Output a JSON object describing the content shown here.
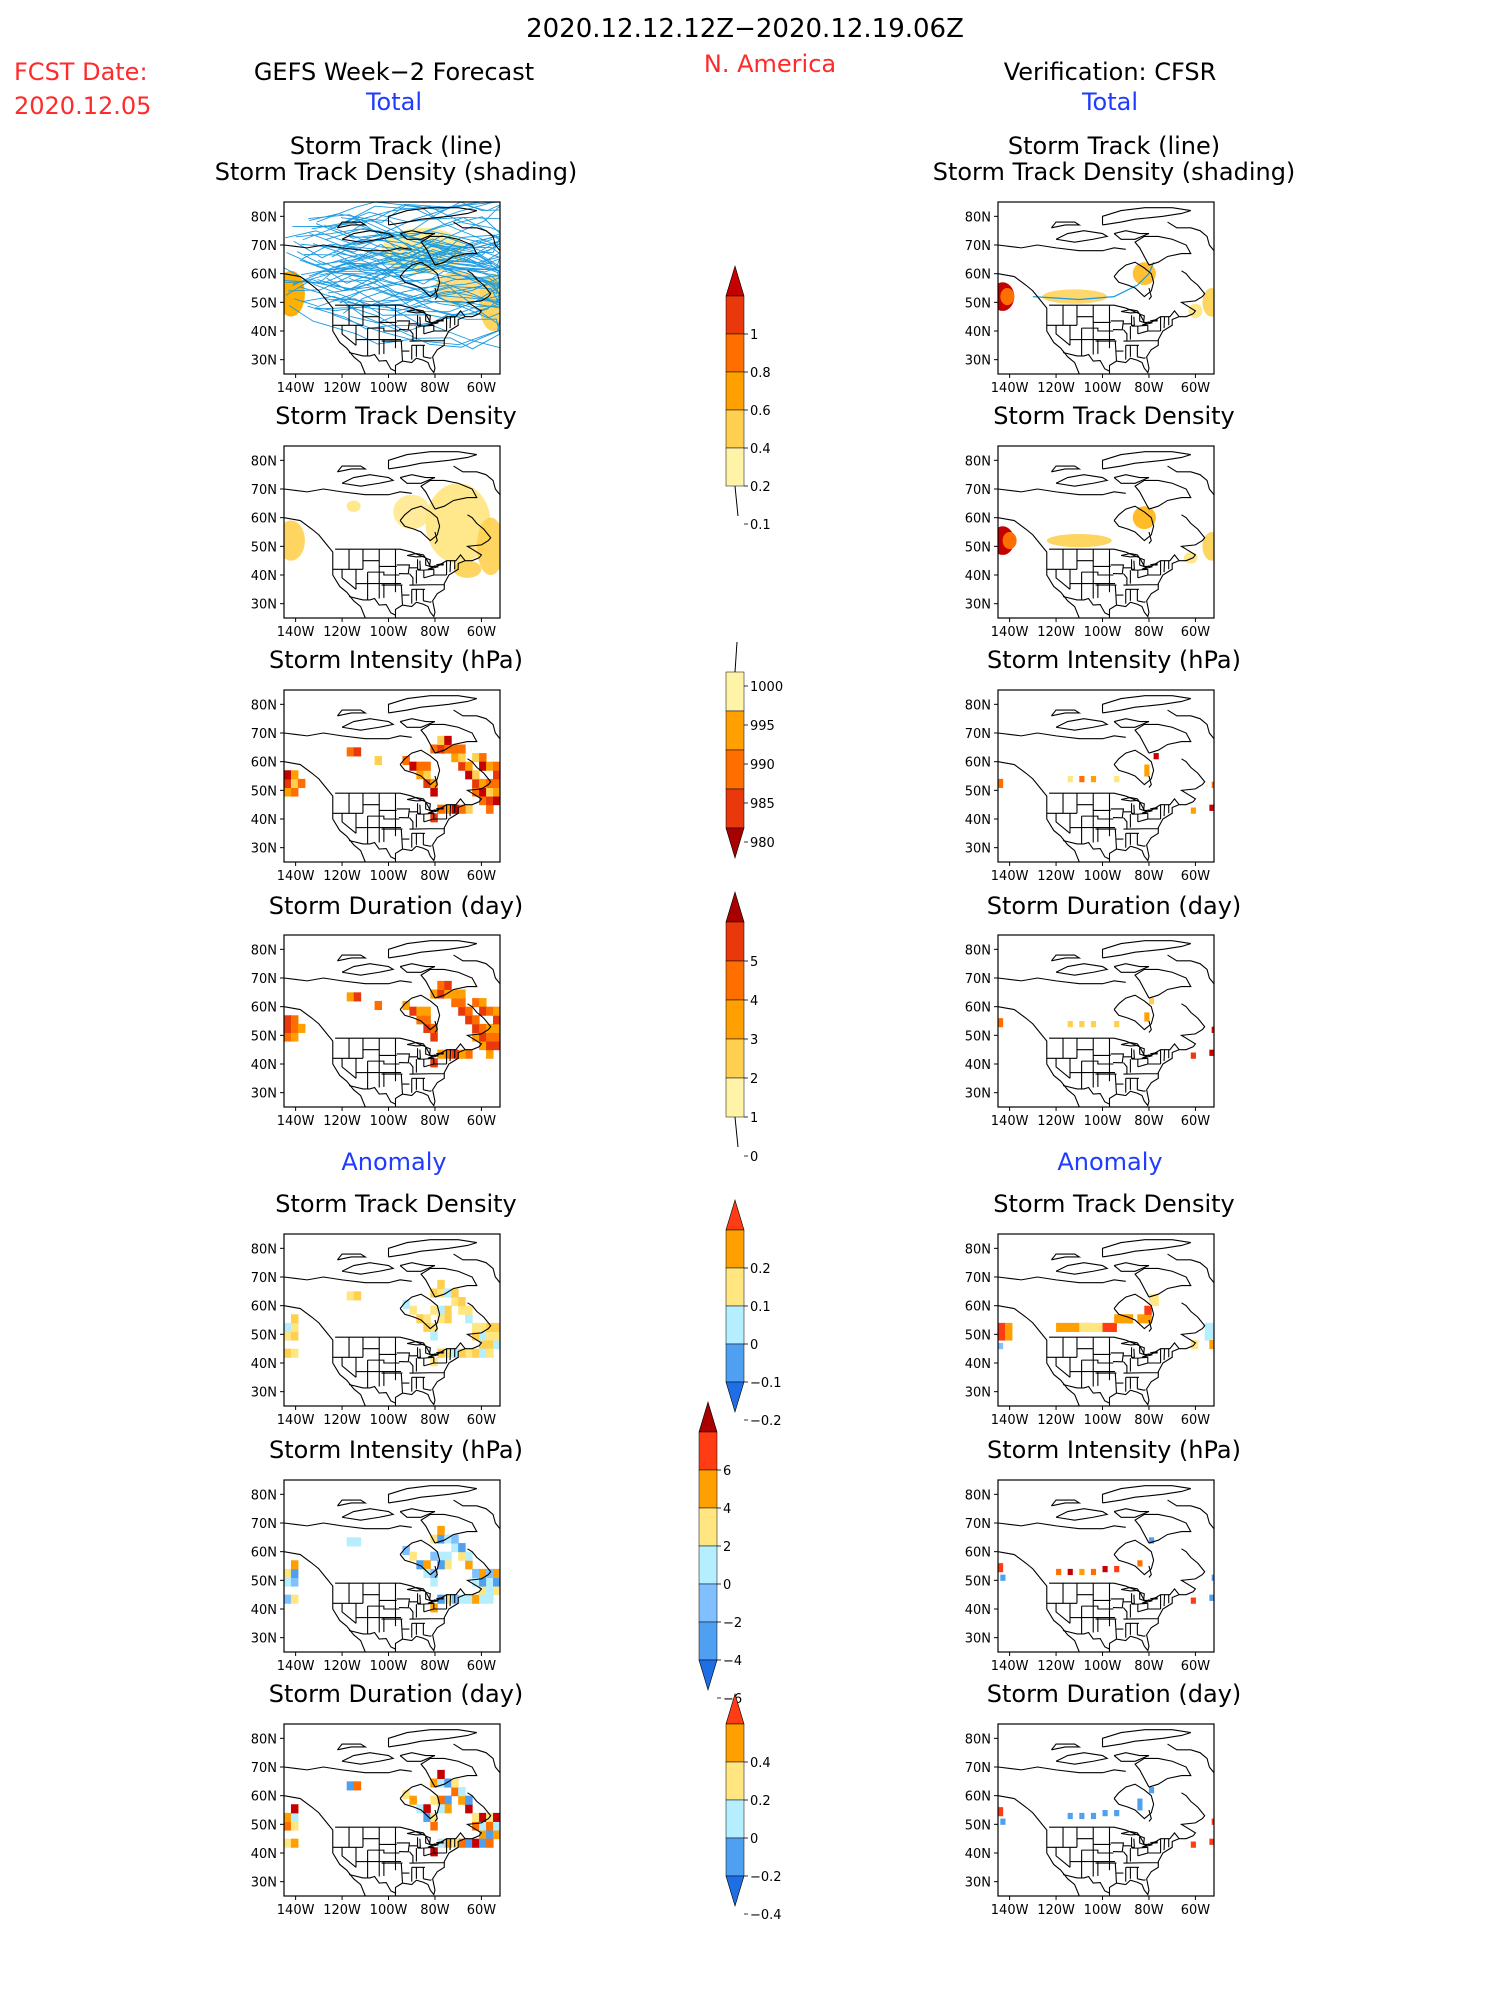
{
  "header": {
    "period": "2020.12.12.12Z−2020.12.19.06Z",
    "region": "N. America",
    "fcst_label": "FCST Date:",
    "fcst_date": "2020.12.05",
    "left_title": "GEFS Week−2 Forecast",
    "right_title": "Verification: CFSR",
    "total_label": "Total",
    "anomaly_label": "Anomaly"
  },
  "panel_titles": {
    "track": [
      "Storm Track (line)",
      "Storm Track Density (shading)"
    ],
    "density": "Storm Track Density",
    "intensity": "Storm Intensity (hPa)",
    "duration": "Storm Duration (day)"
  },
  "axes": {
    "lon_ticks": [
      "140W",
      "120W",
      "100W",
      "80W",
      "60W"
    ],
    "lat_ticks": [
      "80N",
      "70N",
      "60N",
      "50N",
      "40N",
      "30N"
    ]
  },
  "colorbars": {
    "density_total": {
      "labels": [
        "1",
        "0.8",
        "0.6",
        "0.4",
        "0.2",
        "0.1"
      ],
      "colors": [
        "#c40000",
        "#e8380c",
        "#ff6f00",
        "#ffa000",
        "#ffd050",
        "#fff3a8"
      ]
    },
    "intensity_total": {
      "labels": [
        "1000",
        "995",
        "990",
        "985",
        "980"
      ],
      "colors": [
        "#fff3a8",
        "#ffa000",
        "#ff6f00",
        "#e8380c",
        "#a80000"
      ]
    },
    "duration_total": {
      "labels": [
        "5",
        "4",
        "3",
        "2",
        "1",
        "0"
      ],
      "colors": [
        "#a80000",
        "#e8380c",
        "#ff6f00",
        "#ffa000",
        "#ffd050",
        "#fff3a8"
      ]
    },
    "density_anom": {
      "labels": [
        "0.2",
        "0.1",
        "0",
        "−0.1",
        "−0.2"
      ],
      "colors": [
        "#ff3c14",
        "#ffa000",
        "#ffe680",
        "#b4eeff",
        "#4fa0f0",
        "#1e6ee6"
      ]
    },
    "intensity_anom": {
      "labels": [
        "6",
        "4",
        "2",
        "0",
        "−2",
        "−4",
        "−6"
      ],
      "colors": [
        "#a80000",
        "#ff3c14",
        "#ffa000",
        "#ffe680",
        "#b4eeff",
        "#80c0ff",
        "#4fa0f0",
        "#1e6ee6"
      ]
    },
    "duration_anom": {
      "labels": [
        "0.4",
        "0.2",
        "0",
        "−0.2",
        "−0.4"
      ],
      "colors": [
        "#ff3c14",
        "#ffa000",
        "#ffe680",
        "#b4eeff",
        "#4fa0f0",
        "#1e6ee6"
      ]
    }
  },
  "colors": {
    "track_line": "#1a9ae0",
    "density_fill": "#ffd56a",
    "warm": "#ff6f00",
    "dark_red": "#c40000",
    "blue_anom": "#4fa0f0",
    "light_blue": "#b4eeff"
  }
}
